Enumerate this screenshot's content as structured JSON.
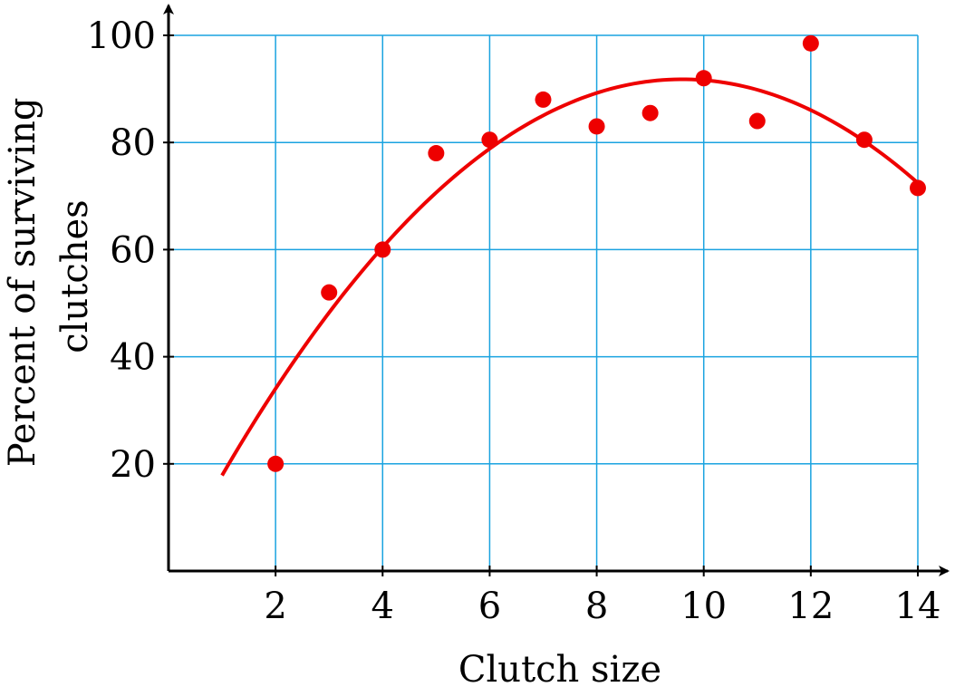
{
  "chart_data": {
    "type": "scatter",
    "title": "",
    "xlabel": "Clutch size",
    "ylabel_lines": [
      "Percent of surviving",
      "clutches"
    ],
    "xlim": [
      0,
      14.5
    ],
    "ylim": [
      0,
      100
    ],
    "x_ticks": [
      2,
      4,
      6,
      8,
      10,
      12,
      14
    ],
    "y_ticks": [
      20,
      40,
      60,
      80,
      100
    ],
    "x_tick_labels": [
      "2",
      "4",
      "6",
      "8",
      "10",
      "12",
      "14"
    ],
    "y_tick_labels": [
      "20",
      "40",
      "60",
      "80",
      "100"
    ],
    "grid": true,
    "grid_x": [
      2,
      4,
      6,
      8,
      10,
      12,
      14
    ],
    "grid_y": [
      20,
      40,
      60,
      80,
      100
    ],
    "points": [
      {
        "x": 2,
        "y": 20
      },
      {
        "x": 3,
        "y": 52
      },
      {
        "x": 4,
        "y": 60
      },
      {
        "x": 5,
        "y": 78
      },
      {
        "x": 6,
        "y": 80.5
      },
      {
        "x": 7,
        "y": 88
      },
      {
        "x": 8,
        "y": 83
      },
      {
        "x": 9,
        "y": 85.5
      },
      {
        "x": 10,
        "y": 92
      },
      {
        "x": 11,
        "y": 84
      },
      {
        "x": 12,
        "y": 98.5
      },
      {
        "x": 13,
        "y": 80.5
      },
      {
        "x": 14,
        "y": 71.5
      }
    ],
    "fit_curve": {
      "type": "quadratic",
      "vertex_x": 9.6,
      "vertex_y": 91.8,
      "a": -1.0,
      "x_range": [
        1,
        14
      ]
    },
    "colors": {
      "points": "#ee0000",
      "curve": "#ee0000",
      "grid": "#1aa3e0",
      "axis": "#000000"
    }
  }
}
